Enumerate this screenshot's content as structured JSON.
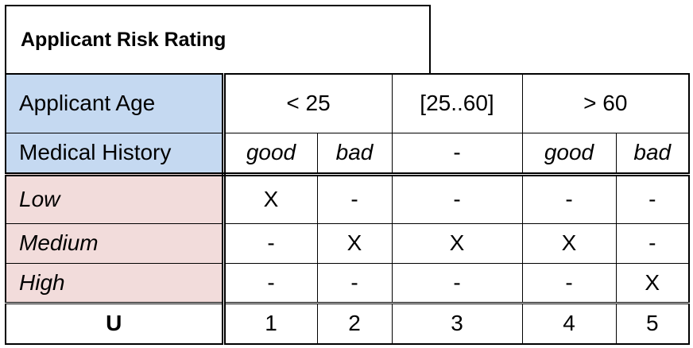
{
  "title": "Applicant Risk Rating",
  "inputs": [
    {
      "label": "Applicant Age",
      "groups": [
        {
          "label": "< 25",
          "span": 2
        },
        {
          "label": "[25..60]",
          "span": 1
        },
        {
          "label": "> 60",
          "span": 2
        }
      ]
    },
    {
      "label": "Medical History",
      "values": [
        "good",
        "bad",
        "-",
        "good",
        "bad"
      ]
    }
  ],
  "outputs": [
    {
      "label": "Low",
      "values": [
        "X",
        "-",
        "-",
        "-",
        "-"
      ]
    },
    {
      "label": "Medium",
      "values": [
        "-",
        "X",
        "X",
        "X",
        "-"
      ]
    },
    {
      "label": "High",
      "values": [
        "-",
        "-",
        "-",
        "-",
        "X"
      ]
    }
  ],
  "hit_policy": {
    "label": "U",
    "rules": [
      "1",
      "2",
      "3",
      "4",
      "5"
    ]
  },
  "colors": {
    "input_bg": "#c5d9f1",
    "output_bg": "#f2dcdb"
  }
}
